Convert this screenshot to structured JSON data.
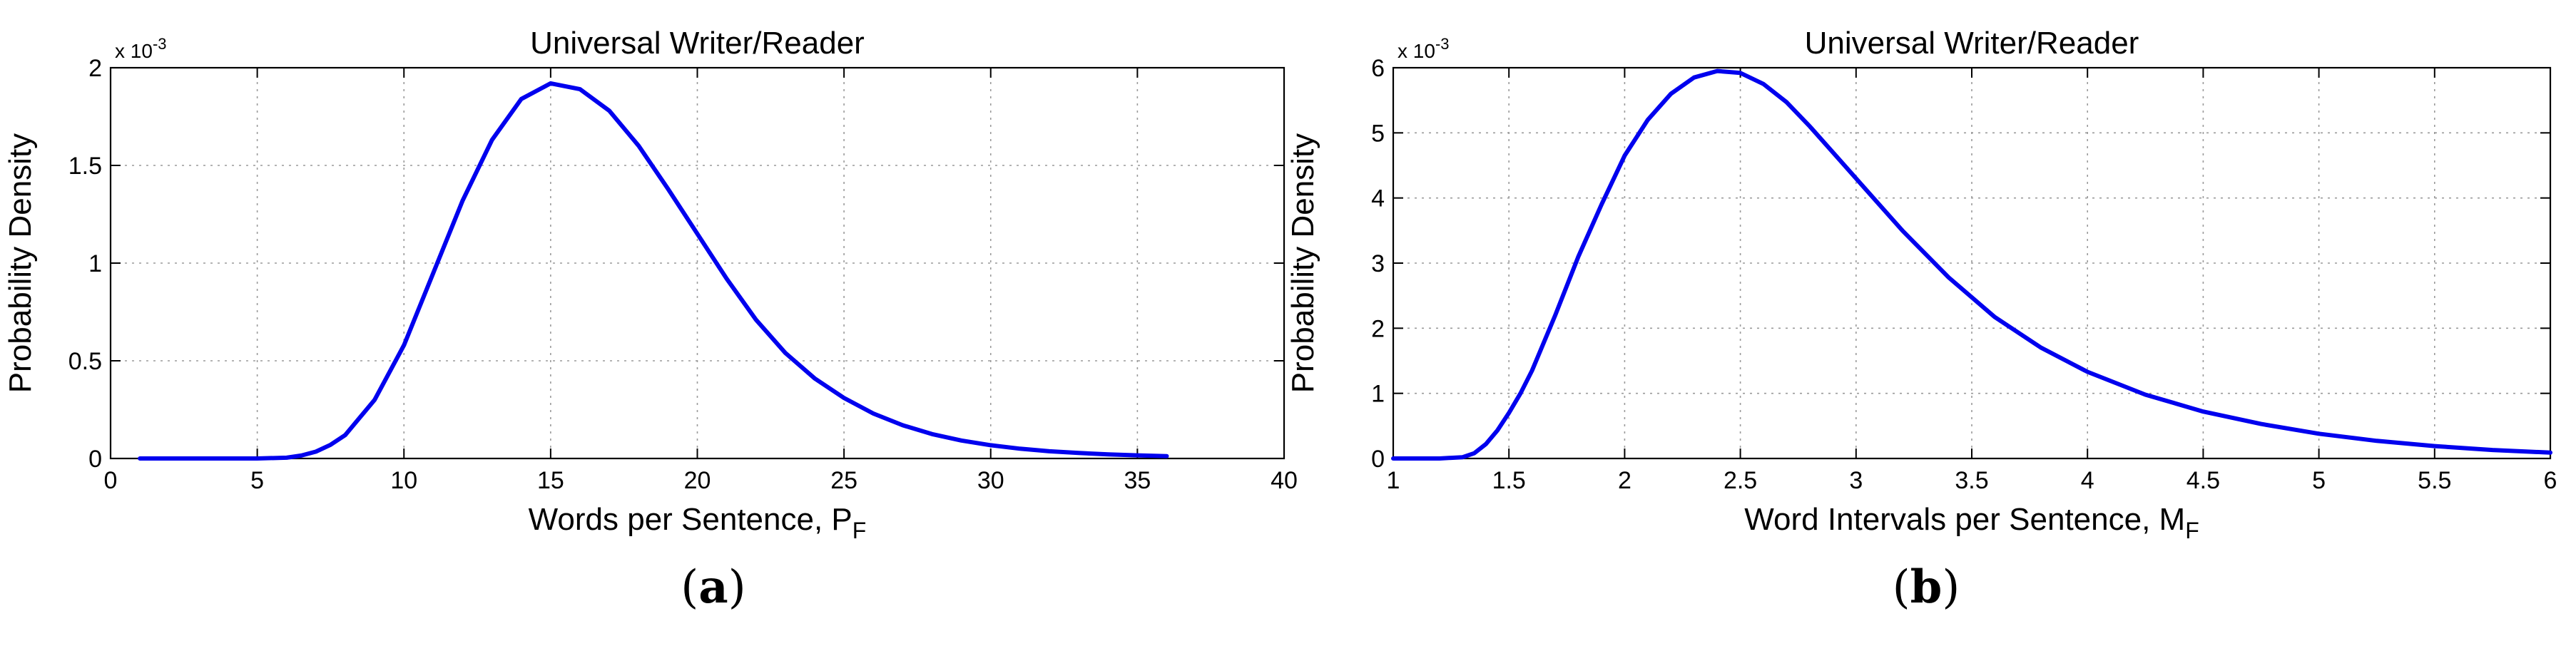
{
  "figure": {
    "panels": [
      "a",
      "b"
    ]
  },
  "chart_data": [
    {
      "type": "line",
      "title": "Universal Writer/Reader",
      "xlabel": "Words per Sentence, ",
      "xlabel_symbol": "P",
      "xlabel_subscript": "F",
      "ylabel": "Probability Density",
      "y_exponent_prefix": "x 10",
      "y_exponent_power": "-3",
      "xlim": [
        0,
        40
      ],
      "ylim": [
        0,
        2
      ],
      "x_ticks": [
        0,
        5,
        10,
        15,
        20,
        25,
        30,
        35,
        40
      ],
      "y_ticks": [
        0,
        0.5,
        1,
        1.5,
        2
      ],
      "x_tick_labels": [
        "0",
        "5",
        "10",
        "15",
        "20",
        "25",
        "30",
        "35",
        "40"
      ],
      "y_tick_labels": [
        "0",
        "0.5",
        "1",
        "1.5",
        "2"
      ],
      "grid": true,
      "color": "#0000ee",
      "series": [
        {
          "x": [
            1,
            4,
            5,
            6,
            6.5,
            7,
            7.5,
            8,
            9,
            10,
            11,
            12,
            13,
            14,
            15,
            16,
            17,
            18,
            19,
            20,
            21,
            22,
            23,
            24,
            25,
            26,
            27,
            28,
            29,
            30,
            31,
            32,
            33,
            34,
            35,
            36
          ],
          "y": [
            0,
            0,
            0.0001,
            0.004,
            0.015,
            0.035,
            0.07,
            0.12,
            0.3,
            0.58,
            0.95,
            1.32,
            1.63,
            1.84,
            1.92,
            1.89,
            1.78,
            1.6,
            1.38,
            1.15,
            0.92,
            0.71,
            0.54,
            0.41,
            0.31,
            0.23,
            0.17,
            0.125,
            0.092,
            0.068,
            0.05,
            0.037,
            0.028,
            0.021,
            0.016,
            0.012
          ]
        }
      ]
    },
    {
      "type": "line",
      "title": "Universal Writer/Reader",
      "xlabel": "Word Intervals per Sentence, ",
      "xlabel_symbol": "M",
      "xlabel_subscript": "F",
      "ylabel": "Probability Density",
      "y_exponent_prefix": "x 10",
      "y_exponent_power": "-3",
      "xlim": [
        1,
        6
      ],
      "ylim": [
        0,
        6
      ],
      "x_ticks": [
        1,
        1.5,
        2,
        2.5,
        3,
        3.5,
        4,
        4.5,
        5,
        5.5,
        6
      ],
      "y_ticks": [
        0,
        1,
        2,
        3,
        4,
        5,
        6
      ],
      "x_tick_labels": [
        "1",
        "1.5",
        "2",
        "2.5",
        "3",
        "3.5",
        "4",
        "4.5",
        "5",
        "5.5",
        "6"
      ],
      "y_tick_labels": [
        "0",
        "1",
        "2",
        "3",
        "4",
        "5",
        "6"
      ],
      "grid": true,
      "color": "#0000ee",
      "series": [
        {
          "x": [
            1,
            1.2,
            1.3,
            1.35,
            1.4,
            1.45,
            1.5,
            1.55,
            1.6,
            1.7,
            1.8,
            1.9,
            2,
            2.1,
            2.2,
            2.3,
            2.4,
            2.5,
            2.6,
            2.7,
            2.8,
            2.9,
            3,
            3.2,
            3.4,
            3.6,
            3.8,
            4,
            4.25,
            4.5,
            4.75,
            5,
            5.25,
            5.5,
            5.75,
            6
          ],
          "y": [
            0,
            0,
            0.02,
            0.08,
            0.22,
            0.43,
            0.7,
            1.0,
            1.35,
            2.2,
            3.1,
            3.9,
            4.65,
            5.2,
            5.6,
            5.85,
            5.95,
            5.92,
            5.75,
            5.47,
            5.1,
            4.7,
            4.3,
            3.5,
            2.78,
            2.17,
            1.7,
            1.33,
            0.98,
            0.72,
            0.53,
            0.38,
            0.27,
            0.19,
            0.13,
            0.09
          ]
        }
      ]
    }
  ]
}
